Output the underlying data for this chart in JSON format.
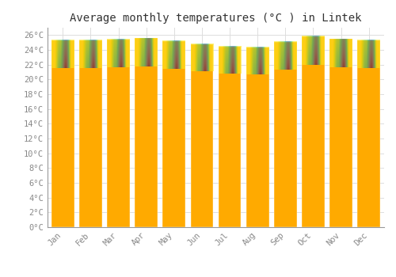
{
  "title": "Average monthly temperatures (°C ) in Lintek",
  "months": [
    "Jan",
    "Feb",
    "Mar",
    "Apr",
    "May",
    "Jun",
    "Jul",
    "Aug",
    "Sep",
    "Oct",
    "Nov",
    "Dec"
  ],
  "values": [
    25.3,
    25.3,
    25.4,
    25.6,
    25.2,
    24.8,
    24.4,
    24.3,
    25.1,
    25.8,
    25.5,
    25.3
  ],
  "bar_color_main": "#FFAA00",
  "bar_color_light": "#FFD060",
  "background_color": "#FFFFFF",
  "grid_color": "#DDDDDD",
  "ylim": [
    0,
    27
  ],
  "ytick_step": 2,
  "title_fontsize": 10,
  "tick_fontsize": 7.5,
  "font_family": "monospace",
  "tick_color": "#888888",
  "title_color": "#333333",
  "spine_color": "#999999"
}
